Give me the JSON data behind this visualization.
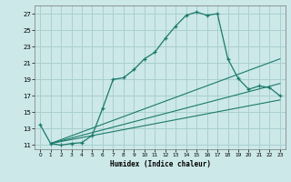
{
  "title": "",
  "xlabel": "Humidex (Indice chaleur)",
  "ylabel": "",
  "bg_color": "#cce8e8",
  "grid_color": "#aacfcf",
  "line_color": "#1a7a6a",
  "xlim": [
    -0.5,
    23.5
  ],
  "ylim": [
    10.5,
    28.0
  ],
  "yticks": [
    11,
    13,
    15,
    17,
    19,
    21,
    23,
    25,
    27
  ],
  "xticks": [
    0,
    1,
    2,
    3,
    4,
    5,
    6,
    7,
    8,
    9,
    10,
    11,
    12,
    13,
    14,
    15,
    16,
    17,
    18,
    19,
    20,
    21,
    22,
    23
  ],
  "line1_x": [
    0,
    1,
    2,
    3,
    4,
    5,
    6,
    7,
    8,
    9,
    10,
    11,
    12,
    13,
    14,
    15,
    16,
    17,
    18,
    19,
    20,
    21,
    22,
    23
  ],
  "line1_y": [
    13.5,
    11.2,
    11.0,
    11.2,
    11.3,
    12.2,
    15.5,
    19.0,
    19.2,
    20.2,
    21.5,
    22.3,
    24.0,
    25.5,
    26.8,
    27.2,
    26.8,
    27.0,
    21.5,
    19.1,
    17.8,
    18.2,
    18.0,
    17.0
  ],
  "line2_x": [
    1,
    23
  ],
  "line2_y": [
    11.2,
    16.5
  ],
  "line3_x": [
    1,
    23
  ],
  "line3_y": [
    11.2,
    18.5
  ],
  "line4_x": [
    1,
    23
  ],
  "line4_y": [
    11.2,
    21.5
  ]
}
